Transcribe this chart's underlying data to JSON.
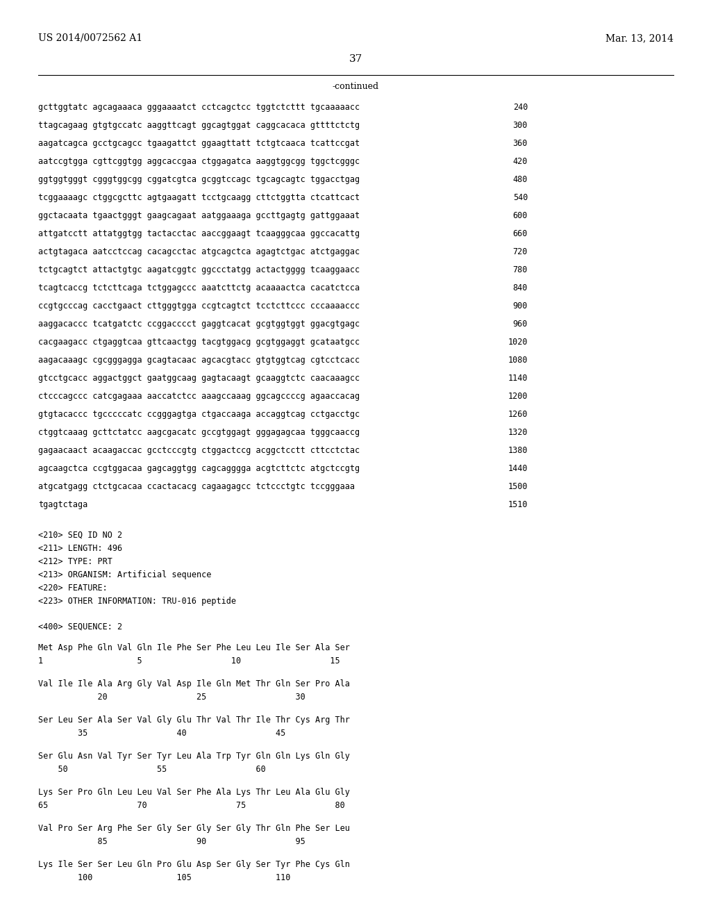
{
  "header_left": "US 2014/0072562 A1",
  "header_right": "Mar. 13, 2014",
  "page_number": "37",
  "continued_label": "-continued",
  "background_color": "#ffffff",
  "text_color": "#000000",
  "dna_lines": [
    {
      "seq": "gcttggtatc agcagaaaca gggaaaatct cctcagctcc tggtctcttt tgcaaaaacc",
      "num": "240"
    },
    {
      "seq": "ttagcagaag gtgtgccatc aaggttcagt ggcagtggat caggcacaca gttttctctg",
      "num": "300"
    },
    {
      "seq": "aagatcagca gcctgcagcc tgaagattct ggaagttatt tctgtcaaca tcattccgat",
      "num": "360"
    },
    {
      "seq": "aatccgtgga cgttcggtgg aggcaccgaa ctggagatca aaggtggcgg tggctcgggc",
      "num": "420"
    },
    {
      "seq": "ggtggtgggt cgggtggcgg cggatcgtca gcggtccagc tgcagcagtc tggacctgag",
      "num": "480"
    },
    {
      "seq": "tcggaaaagc ctggcgcttc agtgaagatt tcctgcaagg cttctggtta ctcattcact",
      "num": "540"
    },
    {
      "seq": "ggctacaata tgaactgggt gaagcagaat aatggaaaga gccttgagtg gattggaaat",
      "num": "600"
    },
    {
      "seq": "attgatcctt attatggtgg tactacctac aaccggaagt tcaagggcaa ggccacattg",
      "num": "660"
    },
    {
      "seq": "actgtagaca aatcctccag cacagcctac atgcagctca agagtctgac atctgaggac",
      "num": "720"
    },
    {
      "seq": "tctgcagtct attactgtgc aagatcggtc ggccctatgg actactgggg tcaaggaacc",
      "num": "780"
    },
    {
      "seq": "tcagtcaccg tctcttcaga tctggagccc aaatcttctg acaaaactca cacatctcca",
      "num": "840"
    },
    {
      "seq": "ccgtgcccag cacctgaact cttgggtgga ccgtcagtct tcctcttccc cccaaaaccc",
      "num": "900"
    },
    {
      "seq": "aaggacaccc tcatgatctc ccggacccct gaggtcacat gcgtggtggt ggacgtgagc",
      "num": "960"
    },
    {
      "seq": "cacgaagacc ctgaggtcaa gttcaactgg tacgtggacg gcgtggaggt gcataatgcc",
      "num": "1020"
    },
    {
      "seq": "aagacaaagc cgcgggagga gcagtacaac agcacgtacc gtgtggtcag cgtcctcacc",
      "num": "1080"
    },
    {
      "seq": "gtcctgcacc aggactggct gaatggcaag gagtacaagt gcaaggtctc caacaaagcc",
      "num": "1140"
    },
    {
      "seq": "ctcccagccc catcgagaaa aaccatctcc aaagccaaag ggcagccccg agaaccacag",
      "num": "1200"
    },
    {
      "seq": "gtgtacaccc tgcccccatc ccgggagtga ctgaccaaga accaggtcag cctgacctgc",
      "num": "1260"
    },
    {
      "seq": "ctggtcaaag gcttctatcc aagcgacatc gccgtggagt gggagagcaa tgggcaaccg",
      "num": "1320"
    },
    {
      "seq": "gagaacaact acaagaccac gcctcccgtg ctggactccg acggctcctt cttcctctac",
      "num": "1380"
    },
    {
      "seq": "agcaagctca ccgtggacaa gagcaggtgg cagcagggga acgtcttctc atgctccgtg",
      "num": "1440"
    },
    {
      "seq": "atgcatgagg ctctgcacaa ccactacacg cagaagagcc tctccctgtc tccgggaaa",
      "num": "1500"
    },
    {
      "seq": "tgagtctaga",
      "num": "1510"
    }
  ],
  "seq_info_lines": [
    "<210> SEQ ID NO 2",
    "<211> LENGTH: 496",
    "<212> TYPE: PRT",
    "<213> ORGANISM: Artificial sequence",
    "<220> FEATURE:",
    "<223> OTHER INFORMATION: TRU-016 peptide"
  ],
  "seq400_label": "<400> SEQUENCE: 2",
  "protein_blocks": [
    {
      "aa_line": "Met Asp Phe Gln Val Gln Ile Phe Ser Phe Leu Leu Ile Ser Ala Ser",
      "num_line": "1                   5                  10                  15"
    },
    {
      "aa_line": "Val Ile Ile Ala Arg Gly Val Asp Ile Gln Met Thr Gln Ser Pro Ala",
      "num_line": "            20                  25                  30"
    },
    {
      "aa_line": "Ser Leu Ser Ala Ser Val Gly Glu Thr Val Thr Ile Thr Cys Arg Thr",
      "num_line": "        35                  40                  45"
    },
    {
      "aa_line": "Ser Glu Asn Val Tyr Ser Tyr Leu Ala Trp Tyr Gln Gln Lys Gln Gly",
      "num_line": "    50                  55                  60"
    },
    {
      "aa_line": "Lys Ser Pro Gln Leu Leu Val Ser Phe Ala Lys Thr Leu Ala Glu Gly",
      "num_line": "65                  70                  75                  80"
    },
    {
      "aa_line": "Val Pro Ser Arg Phe Ser Gly Ser Gly Ser Gly Thr Gln Phe Ser Leu",
      "num_line": "            85                  90                  95"
    },
    {
      "aa_line": "Lys Ile Ser Ser Leu Gln Pro Glu Asp Ser Gly Ser Tyr Phe Cys Gln",
      "num_line": "        100                 105                 110"
    }
  ]
}
